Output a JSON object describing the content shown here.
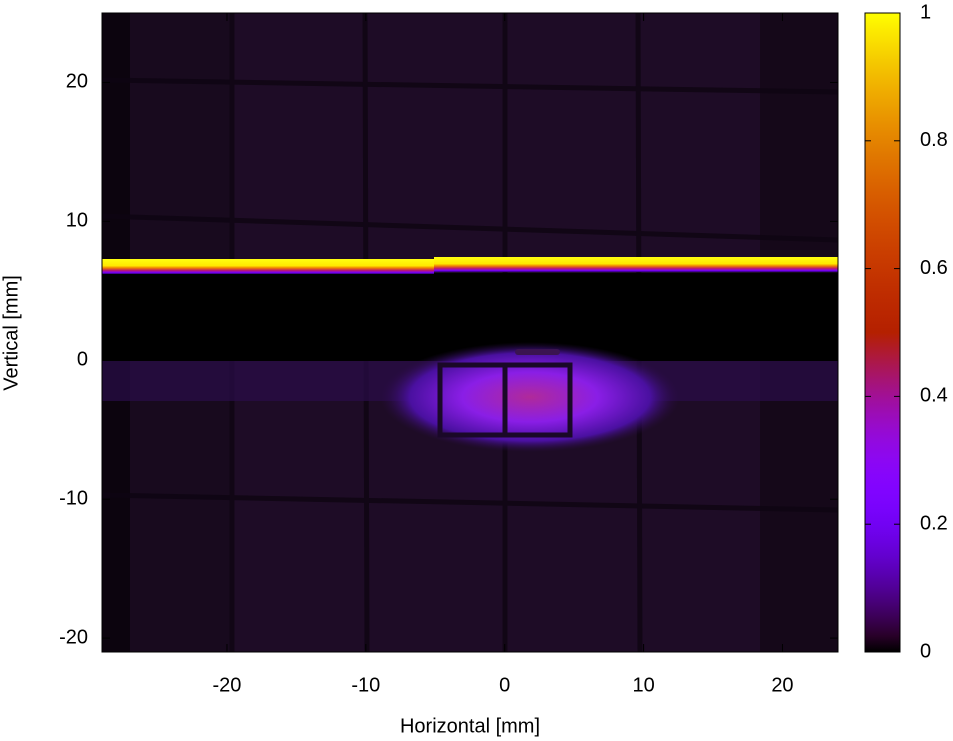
{
  "chart_data": {
    "type": "heatmap",
    "x_label": "Horizontal [mm]",
    "y_label": "Vertical [mm]",
    "xlim": [
      -29,
      24
    ],
    "xticks": [
      -20,
      -10,
      0,
      10,
      20
    ],
    "ylim": [
      -21,
      25
    ],
    "yticks": [
      -20,
      -10,
      0,
      10,
      20
    ],
    "colorbar": {
      "lim": [
        0,
        1
      ],
      "ticks": [
        0,
        0.2,
        0.4,
        0.6,
        0.8,
        1
      ]
    }
  }
}
